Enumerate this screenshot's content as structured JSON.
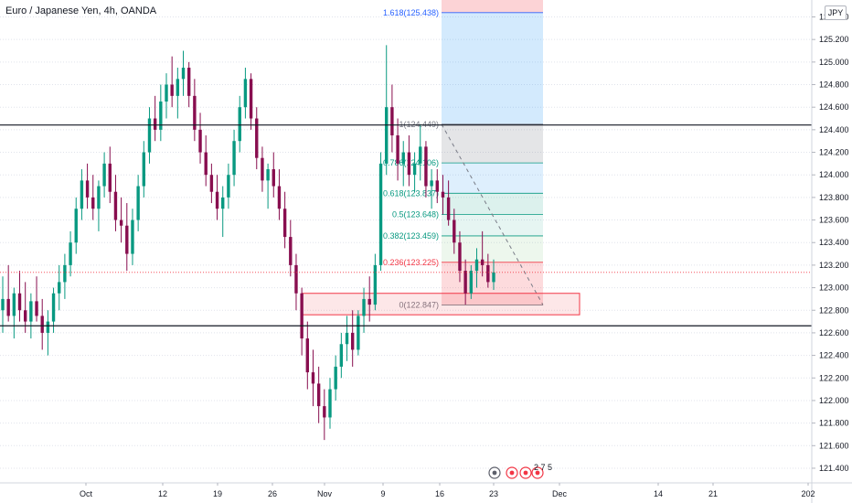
{
  "header": {
    "title": "Euro / Japanese Yen, 4h, OANDA",
    "currency": "JPY"
  },
  "chart_data": {
    "type": "candlestick",
    "symbol": "EURJPY",
    "interval": "4h",
    "broker": "OANDA",
    "y_ticks": [
      "121.400",
      "121.600",
      "121.800",
      "122.000",
      "122.200",
      "122.400",
      "122.600",
      "122.800",
      "123.000",
      "123.200",
      "123.400",
      "123.600",
      "123.800",
      "124.000",
      "124.200",
      "124.400",
      "124.600",
      "124.800",
      "125.000",
      "125.200",
      "125.400"
    ],
    "x_ticks": [
      "Oct",
      "12",
      "19",
      "26",
      "Nov",
      "9",
      "16",
      "23",
      "Dec",
      "14",
      "21",
      "202"
    ],
    "ylim": [
      121.27,
      125.55
    ],
    "horizontal_levels": [
      {
        "label": "124.442",
        "value": 124.442,
        "color": "#131722"
      },
      {
        "label": "122.662",
        "value": 122.662,
        "color": "#131722"
      }
    ],
    "current_price": {
      "label": "123.136",
      "value": 123.136,
      "color": "#f23645"
    },
    "fibonacci": [
      {
        "label": "1.618(125.438)",
        "value": 125.438,
        "color": "#2962ff"
      },
      {
        "label": "1(124.449)",
        "value": 124.449,
        "color": "#787b86"
      },
      {
        "label": "0.786(124.106)",
        "value": 124.106,
        "color": "#089981"
      },
      {
        "label": "0.618(123.837)",
        "value": 123.837,
        "color": "#089981"
      },
      {
        "label": "0.5(123.648)",
        "value": 123.648,
        "color": "#089981"
      },
      {
        "label": "0.382(123.459)",
        "value": 123.459,
        "color": "#089981"
      },
      {
        "label": "0.236(123.225)",
        "value": 123.225,
        "color": "#f23645"
      },
      {
        "label": "0(122.847)",
        "value": 122.847,
        "color": "#787b86"
      }
    ],
    "demand_zone": {
      "top": 122.95,
      "bottom": 122.76
    },
    "bottom_markers": {
      "label": "2 7 5"
    },
    "candles": [
      [
        0,
        122.8,
        123.1,
        122.6,
        122.9
      ],
      [
        1,
        122.9,
        123.2,
        122.7,
        122.75
      ],
      [
        2,
        122.75,
        123.0,
        122.55,
        122.95
      ],
      [
        3,
        122.95,
        123.15,
        122.7,
        122.8
      ],
      [
        4,
        122.8,
        123.05,
        122.6,
        122.7
      ],
      [
        5,
        122.7,
        122.95,
        122.55,
        122.88
      ],
      [
        6,
        122.88,
        123.1,
        122.7,
        122.75
      ],
      [
        7,
        122.75,
        122.9,
        122.45,
        122.6
      ],
      [
        8,
        122.6,
        122.8,
        122.4,
        122.7
      ],
      [
        9,
        122.7,
        123.0,
        122.6,
        122.95
      ],
      [
        10,
        122.95,
        123.2,
        122.8,
        123.05
      ],
      [
        11,
        123.05,
        123.3,
        122.9,
        123.2
      ],
      [
        12,
        123.2,
        123.5,
        123.1,
        123.4
      ],
      [
        13,
        123.4,
        123.8,
        123.3,
        123.7
      ],
      [
        14,
        123.7,
        124.05,
        123.6,
        123.95
      ],
      [
        15,
        123.95,
        124.1,
        123.7,
        123.8
      ],
      [
        16,
        123.8,
        124.0,
        123.6,
        123.7
      ],
      [
        17,
        123.7,
        123.95,
        123.5,
        123.9
      ],
      [
        18,
        123.9,
        124.2,
        123.8,
        124.1
      ],
      [
        19,
        124.1,
        124.25,
        123.75,
        123.85
      ],
      [
        20,
        123.85,
        124.0,
        123.5,
        123.6
      ],
      [
        21,
        123.6,
        123.8,
        123.4,
        123.55
      ],
      [
        22,
        123.55,
        123.75,
        123.15,
        123.3
      ],
      [
        23,
        123.3,
        123.7,
        123.2,
        123.6
      ],
      [
        24,
        123.6,
        124.0,
        123.5,
        123.9
      ],
      [
        25,
        123.9,
        124.3,
        123.8,
        124.2
      ],
      [
        26,
        124.2,
        124.6,
        124.1,
        124.5
      ],
      [
        27,
        124.5,
        124.7,
        124.3,
        124.4
      ],
      [
        28,
        124.4,
        124.8,
        124.3,
        124.65
      ],
      [
        29,
        124.65,
        124.9,
        124.5,
        124.8
      ],
      [
        30,
        124.8,
        125.05,
        124.6,
        124.7
      ],
      [
        31,
        124.7,
        124.95,
        124.5,
        124.85
      ],
      [
        32,
        124.85,
        125.1,
        124.7,
        124.95
      ],
      [
        33,
        124.95,
        125.0,
        124.6,
        124.7
      ],
      [
        34,
        124.7,
        124.85,
        124.3,
        124.4
      ],
      [
        35,
        124.4,
        124.55,
        124.1,
        124.2
      ],
      [
        36,
        124.2,
        124.35,
        123.9,
        124.0
      ],
      [
        37,
        124.0,
        124.1,
        123.75,
        123.85
      ],
      [
        38,
        123.85,
        124.0,
        123.6,
        123.7
      ],
      [
        39,
        123.7,
        123.9,
        123.45,
        123.8
      ],
      [
        40,
        123.8,
        124.1,
        123.7,
        124.0
      ],
      [
        41,
        124.0,
        124.4,
        123.9,
        124.3
      ],
      [
        42,
        124.3,
        124.7,
        124.2,
        124.6
      ],
      [
        43,
        124.6,
        124.95,
        124.5,
        124.85
      ],
      [
        44,
        124.85,
        124.9,
        124.4,
        124.5
      ],
      [
        45,
        124.5,
        124.6,
        124.05,
        124.15
      ],
      [
        46,
        124.15,
        124.25,
        123.85,
        123.95
      ],
      [
        47,
        123.95,
        124.1,
        123.7,
        124.05
      ],
      [
        48,
        124.05,
        124.2,
        123.8,
        123.9
      ],
      [
        49,
        123.9,
        124.05,
        123.6,
        123.7
      ],
      [
        50,
        123.7,
        123.85,
        123.35,
        123.45
      ],
      [
        51,
        123.45,
        123.6,
        123.1,
        123.2
      ],
      [
        52,
        123.2,
        123.3,
        122.8,
        122.95
      ],
      [
        53,
        122.95,
        123.0,
        122.4,
        122.55
      ],
      [
        54,
        122.55,
        122.7,
        122.1,
        122.25
      ],
      [
        55,
        122.25,
        122.45,
        121.95,
        122.15
      ],
      [
        56,
        122.15,
        122.3,
        121.8,
        121.95
      ],
      [
        57,
        121.95,
        122.1,
        121.65,
        121.85
      ],
      [
        58,
        121.85,
        122.2,
        121.75,
        122.1
      ],
      [
        59,
        122.1,
        122.4,
        122.0,
        122.3
      ],
      [
        60,
        122.3,
        122.6,
        122.2,
        122.5
      ],
      [
        61,
        122.5,
        122.75,
        122.35,
        122.6
      ],
      [
        62,
        122.6,
        122.8,
        122.3,
        122.45
      ],
      [
        63,
        122.45,
        122.8,
        122.4,
        122.75
      ],
      [
        64,
        122.75,
        123.0,
        122.6,
        122.9
      ],
      [
        65,
        122.9,
        123.1,
        122.7,
        122.85
      ],
      [
        66,
        122.85,
        123.3,
        122.8,
        123.2
      ],
      [
        67,
        123.2,
        124.2,
        123.15,
        124.1
      ],
      [
        68,
        124.1,
        125.15,
        124.0,
        124.6
      ],
      [
        69,
        124.6,
        124.8,
        124.2,
        124.35
      ],
      [
        70,
        124.35,
        124.5,
        123.95,
        124.1
      ],
      [
        71,
        124.1,
        124.3,
        123.9,
        124.2
      ],
      [
        72,
        124.2,
        124.35,
        123.9,
        124.0
      ],
      [
        73,
        124.0,
        124.2,
        123.85,
        124.1
      ],
      [
        74,
        124.1,
        124.45,
        123.95,
        124.25
      ],
      [
        75,
        124.25,
        124.3,
        123.8,
        123.9
      ],
      [
        76,
        123.9,
        124.05,
        123.7,
        123.95
      ],
      [
        77,
        123.95,
        124.05,
        123.75,
        123.85
      ],
      [
        78,
        123.85,
        124.0,
        123.65,
        123.8
      ],
      [
        79,
        123.8,
        123.95,
        123.55,
        123.6
      ],
      [
        80,
        123.6,
        123.7,
        123.3,
        123.4
      ],
      [
        81,
        123.4,
        123.5,
        123.05,
        123.15
      ],
      [
        82,
        123.15,
        123.25,
        122.85,
        122.95
      ],
      [
        83,
        122.95,
        123.2,
        122.9,
        123.15
      ],
      [
        84,
        123.15,
        123.35,
        123.0,
        123.25
      ],
      [
        85,
        123.25,
        123.5,
        123.1,
        123.2
      ],
      [
        86,
        123.2,
        123.3,
        123.0,
        123.05
      ],
      [
        87,
        123.05,
        123.25,
        122.98,
        123.136
      ]
    ]
  }
}
